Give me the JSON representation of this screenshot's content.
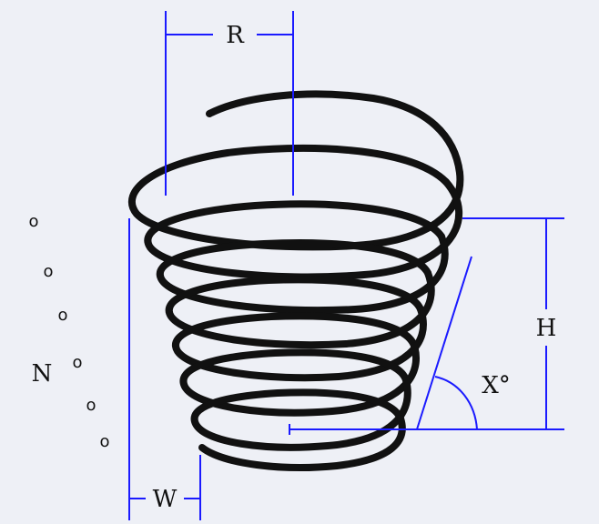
{
  "labels": {
    "radius": "R",
    "height": "H",
    "angle": "X°",
    "turns": "N",
    "wire_width": "W"
  },
  "coil_dots": [
    "o",
    "o",
    "o",
    "o",
    "o",
    "o"
  ],
  "colors": {
    "background": "#eef0f6",
    "spring": "#111111",
    "dimension_lines": "#1a1aff",
    "text": "#111111"
  }
}
